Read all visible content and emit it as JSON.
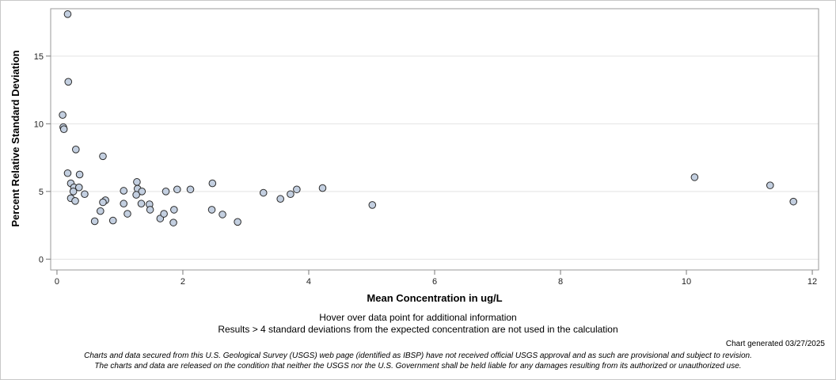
{
  "chart_data": {
    "type": "scatter",
    "title": "",
    "xlabel": "Mean Concentration in ug/L",
    "ylabel": "Percent Relative Standard Deviation",
    "xlim": [
      -0.1,
      12.1
    ],
    "ylim": [
      -0.8,
      18.5
    ],
    "xticks": [
      0,
      2,
      4,
      6,
      8,
      10,
      12
    ],
    "yticks": [
      0,
      5,
      10,
      15
    ],
    "grid": "horizontal",
    "marker_color": "#c3cfe0",
    "marker_edge": "#2b2b2b",
    "points": [
      {
        "x": 0.17,
        "y": 18.1
      },
      {
        "x": 0.18,
        "y": 13.1
      },
      {
        "x": 0.09,
        "y": 10.65
      },
      {
        "x": 0.1,
        "y": 9.75
      },
      {
        "x": 0.11,
        "y": 9.6
      },
      {
        "x": 0.3,
        "y": 8.1
      },
      {
        "x": 0.73,
        "y": 7.6
      },
      {
        "x": 0.17,
        "y": 6.35
      },
      {
        "x": 0.36,
        "y": 6.25
      },
      {
        "x": 0.22,
        "y": 5.6
      },
      {
        "x": 0.27,
        "y": 5.3
      },
      {
        "x": 0.35,
        "y": 5.3
      },
      {
        "x": 0.26,
        "y": 5.0
      },
      {
        "x": 0.44,
        "y": 4.8
      },
      {
        "x": 0.22,
        "y": 4.5
      },
      {
        "x": 0.29,
        "y": 4.3
      },
      {
        "x": 0.77,
        "y": 4.35
      },
      {
        "x": 0.73,
        "y": 4.2
      },
      {
        "x": 0.69,
        "y": 3.55
      },
      {
        "x": 0.6,
        "y": 2.8
      },
      {
        "x": 0.89,
        "y": 2.85
      },
      {
        "x": 1.06,
        "y": 5.05
      },
      {
        "x": 1.06,
        "y": 4.1
      },
      {
        "x": 1.12,
        "y": 3.35
      },
      {
        "x": 1.27,
        "y": 5.7
      },
      {
        "x": 1.28,
        "y": 5.2
      },
      {
        "x": 1.35,
        "y": 5.0
      },
      {
        "x": 1.26,
        "y": 4.75
      },
      {
        "x": 1.34,
        "y": 4.1
      },
      {
        "x": 1.47,
        "y": 4.05
      },
      {
        "x": 1.48,
        "y": 3.65
      },
      {
        "x": 1.64,
        "y": 3.0
      },
      {
        "x": 1.7,
        "y": 3.35
      },
      {
        "x": 1.73,
        "y": 5.0
      },
      {
        "x": 1.86,
        "y": 3.65
      },
      {
        "x": 1.85,
        "y": 2.7
      },
      {
        "x": 1.91,
        "y": 5.15
      },
      {
        "x": 2.12,
        "y": 5.15
      },
      {
        "x": 2.47,
        "y": 5.6
      },
      {
        "x": 2.46,
        "y": 3.65
      },
      {
        "x": 2.63,
        "y": 3.3
      },
      {
        "x": 2.87,
        "y": 2.75
      },
      {
        "x": 3.28,
        "y": 4.9
      },
      {
        "x": 3.55,
        "y": 4.45
      },
      {
        "x": 3.71,
        "y": 4.8
      },
      {
        "x": 3.81,
        "y": 5.15
      },
      {
        "x": 4.22,
        "y": 5.25
      },
      {
        "x": 5.01,
        "y": 4.0
      },
      {
        "x": 10.13,
        "y": 6.05
      },
      {
        "x": 11.33,
        "y": 5.45
      },
      {
        "x": 11.7,
        "y": 4.25
      }
    ]
  },
  "notes": {
    "hover": "Hover over data point for additional information",
    "exclusion": "Results > 4 standard deviations from the expected concentration are not used in the calculation",
    "generated": "Chart generated 03/27/2025",
    "disclaimer_1": "Charts and data secured from this U.S. Geological Survey (USGS) web page (identified as IBSP) have not received official USGS approval and as such are provisional and subject to revision.",
    "disclaimer_2": "The charts and data are released on the condition that neither the USGS nor the U.S. Government shall be held liable for any damages resulting from its authorized or unauthorized use."
  }
}
